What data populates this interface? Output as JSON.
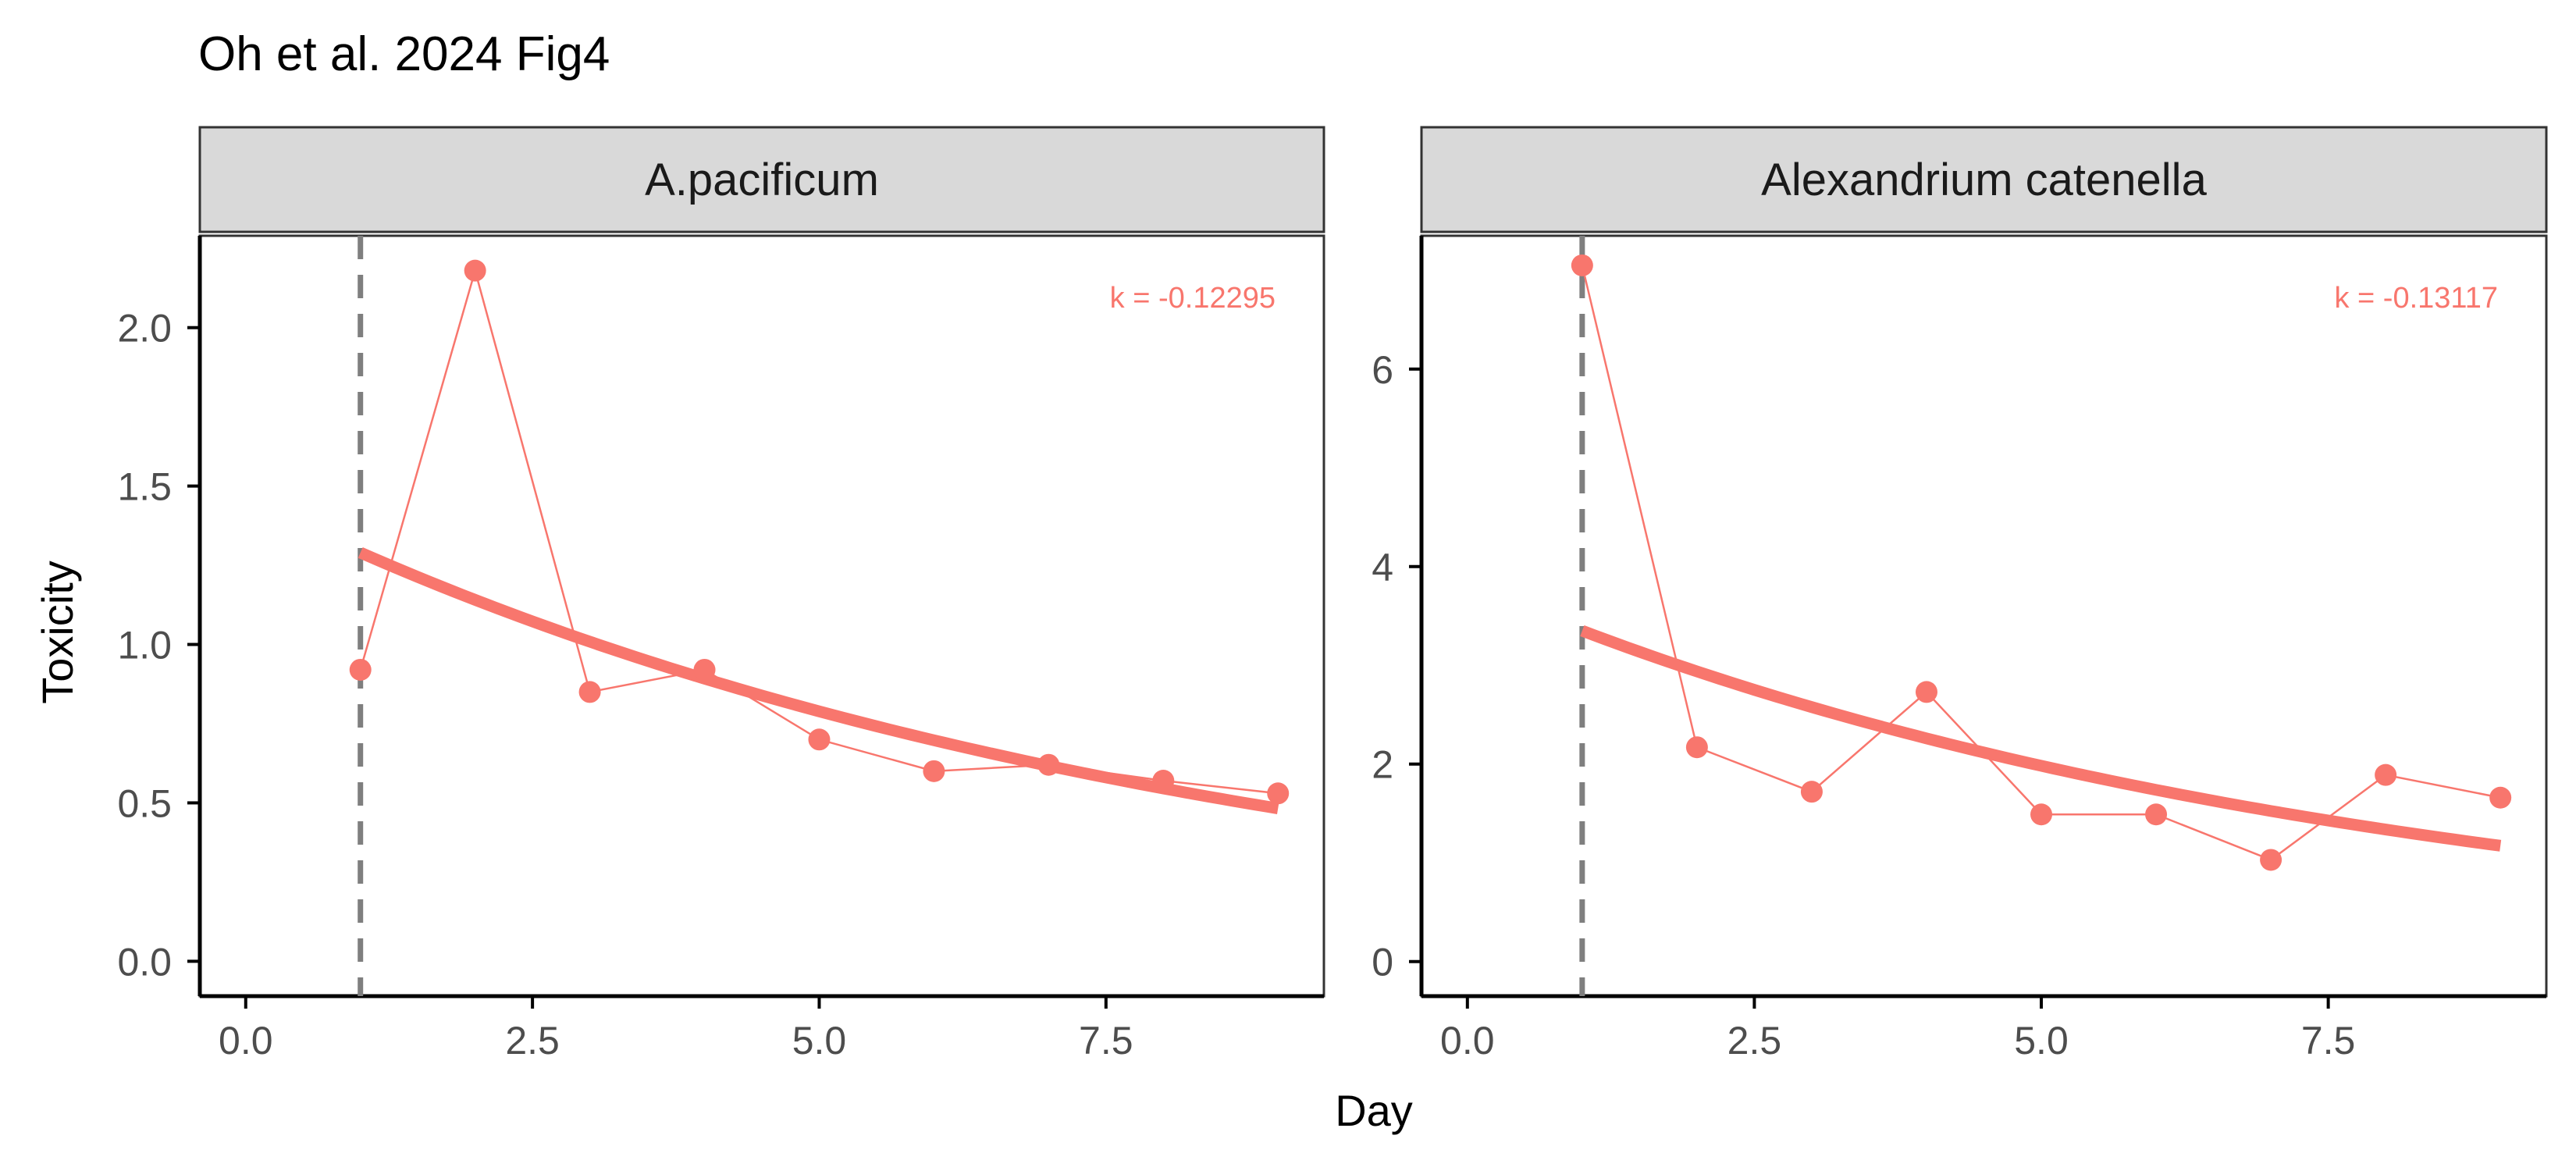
{
  "title": "Oh et al. 2024 Fig4",
  "xlabel": "Day",
  "ylabel": "Toxicity",
  "colors": {
    "series": "#F8766D",
    "strip_fill": "#D9D9D9",
    "strip_border": "#333333",
    "vline": "#7F7F7F",
    "axis": "#000000",
    "tick_text": "#4D4D4D"
  },
  "chart_data": [
    {
      "type": "scatter",
      "panel": "A.pacificum",
      "annotation": "k = -0.12295",
      "xlim": [
        -0.4,
        9.4
      ],
      "ylim": [
        -0.11,
        2.29
      ],
      "x_ticks": [
        0.0,
        2.5,
        5.0,
        7.5
      ],
      "x_tick_labels": [
        "0.0",
        "2.5",
        "5.0",
        "7.5"
      ],
      "y_ticks": [
        0.0,
        0.5,
        1.0,
        1.5,
        2.0
      ],
      "y_tick_labels": [
        "0.0",
        "0.5",
        "1.0",
        "1.5",
        "2.0"
      ],
      "vline_x": 1,
      "x": [
        1,
        2,
        3,
        4,
        5,
        6,
        7,
        8,
        9
      ],
      "y": [
        0.92,
        2.18,
        0.85,
        0.92,
        0.7,
        0.6,
        0.62,
        0.57,
        0.53
      ],
      "fit": {
        "model": "exponential decay",
        "x_range": [
          1,
          9
        ],
        "start": 1.29,
        "k": -0.12295
      }
    },
    {
      "type": "scatter",
      "panel": "Alexandrium catenella",
      "annotation": "k = -0.13117",
      "xlim": [
        -0.4,
        9.4
      ],
      "ylim": [
        -0.35,
        7.35
      ],
      "x_ticks": [
        0.0,
        2.5,
        5.0,
        7.5
      ],
      "x_tick_labels": [
        "0.0",
        "2.5",
        "5.0",
        "7.5"
      ],
      "y_ticks": [
        0,
        2,
        4,
        6
      ],
      "y_tick_labels": [
        "0",
        "2",
        "4",
        "6"
      ],
      "vline_x": 1,
      "x": [
        1,
        2,
        3,
        4,
        5,
        6,
        7,
        8,
        9
      ],
      "y": [
        7.05,
        2.17,
        1.72,
        2.73,
        1.49,
        1.49,
        1.03,
        1.89,
        1.66
      ],
      "fit": {
        "model": "exponential decay",
        "x_range": [
          1,
          9
        ],
        "start": 3.35,
        "k": -0.13117
      }
    }
  ]
}
